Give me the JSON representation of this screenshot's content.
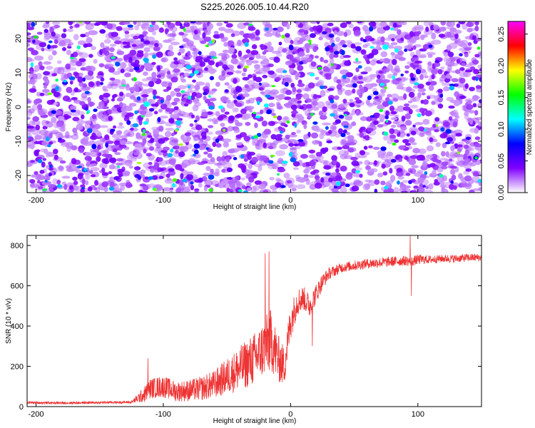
{
  "title": "S225.2026.005.10.44.R20",
  "chart_data": [
    {
      "type": "heatmap",
      "xlabel": "Height of straight line (km)",
      "ylabel": "Frequency (Hz)",
      "xlim": [
        -207,
        150
      ],
      "ylim": [
        -25,
        25
      ],
      "xticks": [
        -200,
        -100,
        0,
        100
      ],
      "yticks": [
        -20,
        -10,
        0,
        10,
        20
      ],
      "colorbar": {
        "label": "Normalized spectral amplitude",
        "range": [
          0,
          0.27
        ],
        "ticks": [
          "0.00",
          "0.05",
          "0.10",
          "0.15",
          "0.20",
          "0.25"
        ],
        "colormap": [
          "#ffffff",
          "#8000ff",
          "#0000ff",
          "#00ffff",
          "#00ff00",
          "#ffff00",
          "#ff0000",
          "#ff00ff"
        ]
      },
      "description_values": {
        "typical_amplitude": 0.03,
        "hotspot_amplitude": 0.12,
        "max_amplitude": 0.18
      }
    },
    {
      "type": "line",
      "xlabel": "Height of straight line (km)",
      "ylabel": "SNR (10 * v/v)",
      "xlim": [
        -207,
        150
      ],
      "ylim": [
        0,
        850
      ],
      "xticks": [
        -200,
        -100,
        0,
        100
      ],
      "yticks": [
        0,
        200,
        400,
        600,
        800
      ],
      "color": "#ee3333",
      "series": [
        {
          "x": [
            -207,
            -180,
            -150,
            -125,
            -115,
            -110,
            -100,
            -90,
            -80,
            -70,
            -60,
            -50,
            -40,
            -30,
            -25,
            -20,
            -15,
            -10,
            -5,
            0,
            5,
            10,
            15,
            20,
            25,
            30,
            40,
            50,
            60,
            70,
            80,
            90,
            95,
            100,
            110,
            120,
            130,
            140,
            150
          ],
          "values": [
            20,
            18,
            20,
            22,
            60,
            90,
            100,
            75,
            80,
            90,
            110,
            150,
            190,
            230,
            260,
            300,
            330,
            240,
            200,
            420,
            520,
            540,
            500,
            560,
            620,
            660,
            690,
            700,
            710,
            715,
            720,
            725,
            720,
            730,
            730,
            735,
            735,
            740,
            740
          ],
          "noise": [
            6,
            6,
            6,
            6,
            40,
            50,
            55,
            50,
            55,
            60,
            70,
            90,
            110,
            130,
            130,
            150,
            160,
            120,
            100,
            90,
            70,
            60,
            60,
            50,
            40,
            30,
            25,
            25,
            25,
            25,
            25,
            25,
            25,
            25,
            20,
            20,
            20,
            20,
            20
          ]
        }
      ],
      "spikes": [
        {
          "x": -17,
          "value": 770
        },
        {
          "x": -20,
          "value": 760
        },
        {
          "x": 94,
          "value": 850
        },
        {
          "x": 95,
          "value": 550
        },
        {
          "x": -112,
          "value": 240
        },
        {
          "x": 17,
          "value": 300
        }
      ]
    }
  ]
}
